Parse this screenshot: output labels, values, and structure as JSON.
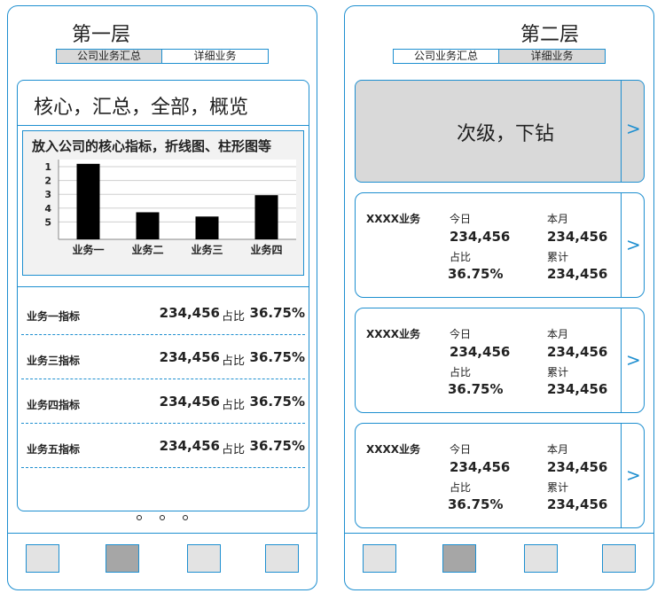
{
  "phone1": {
    "title": "第一层",
    "tabs": [
      {
        "label": "公司业务汇总",
        "active": true
      },
      {
        "label": "详细业务",
        "active": false
      }
    ],
    "core_title": "核心，汇总，全部，概览",
    "chart_caption": "放入公司的核心指标，折线图、柱形图等",
    "metrics": [
      {
        "name": "业务一指标",
        "value": "234,456",
        "ratio_label": "占比",
        "ratio": "36.75%"
      },
      {
        "name": "业务三指标",
        "value": "234,456",
        "ratio_label": "占比",
        "ratio": "36.75%"
      },
      {
        "name": "业务四指标",
        "value": "234,456",
        "ratio_label": "占比",
        "ratio": "36.75%"
      },
      {
        "name": "业务五指标",
        "value": "234,456",
        "ratio_label": "占比",
        "ratio": "36.75%"
      }
    ],
    "dots_count": 3
  },
  "phone2": {
    "title": "第二层",
    "tabs": [
      {
        "label": "公司业务汇总",
        "active": false
      },
      {
        "label": "详细业务",
        "active": true
      }
    ],
    "drill_text": "次级，下钻",
    "chevron": ">",
    "cards": [
      {
        "name": "XXXX业务",
        "today_label": "今日",
        "today_value": "234,456",
        "month_label": "本月",
        "month_value": "234,456",
        "ratio_label": "占比",
        "ratio_value": "36.75%",
        "cumulative_label": "累计",
        "cumulative_value": "234,456"
      },
      {
        "name": "XXXX业务",
        "today_label": "今日",
        "today_value": "234,456",
        "month_label": "本月",
        "month_value": "234,456",
        "ratio_label": "占比",
        "ratio_value": "36.75%",
        "cumulative_label": "累计",
        "cumulative_value": "234,456"
      },
      {
        "name": "XXXX业务",
        "today_label": "今日",
        "today_value": "234,456",
        "month_label": "本月",
        "month_value": "234,456",
        "ratio_label": "占比",
        "ratio_value": "36.75%",
        "cumulative_label": "累计",
        "cumulative_value": "234,456"
      }
    ]
  },
  "bottom_nav": {
    "active_index": 1,
    "count": 4
  },
  "colors": {
    "accent": "#1e8fd0",
    "bar": "#000000",
    "panel_gray": "#d9d9d9",
    "nav_active": "#a6a6a6",
    "nav_idle": "#e3e3e3"
  },
  "chart_data": {
    "type": "bar",
    "categories": [
      "业务一",
      "业务二",
      "业务三",
      "业务四"
    ],
    "values": [
      5.3,
      1.9,
      1.6,
      3.1
    ],
    "y_tick_labels": [
      "1",
      "2",
      "3",
      "4",
      "5"
    ],
    "ylim": [
      0,
      5.6
    ],
    "grid": true,
    "title": "",
    "xlabel": "",
    "ylabel": ""
  }
}
